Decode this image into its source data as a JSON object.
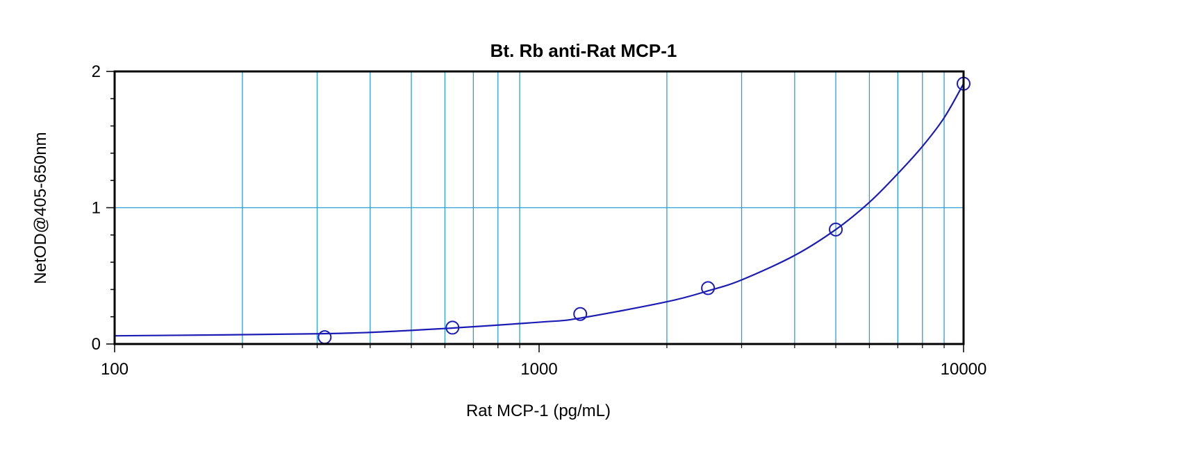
{
  "chart_data": {
    "type": "scatter",
    "title": "Bt. Rb anti-Rat MCP-1",
    "xlabel": "Rat MCP-1 (pg/mL)",
    "ylabel": "NetOD@405-650nm",
    "x_scale": "log",
    "xlim": [
      100,
      10000
    ],
    "ylim": [
      0,
      2
    ],
    "x_ticks": [
      {
        "value": 100,
        "label": "100"
      },
      {
        "value": 1000,
        "label": "1000"
      },
      {
        "value": 10000,
        "label": "10000"
      }
    ],
    "y_ticks": [
      {
        "value": 0,
        "label": "0"
      },
      {
        "value": 1,
        "label": "1"
      },
      {
        "value": 2,
        "label": "2"
      }
    ],
    "grid": true,
    "points": [
      {
        "x": 312.5,
        "y": 0.05
      },
      {
        "x": 625,
        "y": 0.12
      },
      {
        "x": 1250,
        "y": 0.22
      },
      {
        "x": 2500,
        "y": 0.41
      },
      {
        "x": 5000,
        "y": 0.84
      },
      {
        "x": 10000,
        "y": 1.91
      }
    ],
    "fit_curve": [
      {
        "x": 100,
        "y": 0.06
      },
      {
        "x": 300,
        "y": 0.075
      },
      {
        "x": 500,
        "y": 0.1
      },
      {
        "x": 1000,
        "y": 0.16
      },
      {
        "x": 1250,
        "y": 0.19
      },
      {
        "x": 2000,
        "y": 0.31
      },
      {
        "x": 2500,
        "y": 0.39
      },
      {
        "x": 3000,
        "y": 0.47
      },
      {
        "x": 4000,
        "y": 0.65
      },
      {
        "x": 5000,
        "y": 0.84
      },
      {
        "x": 6000,
        "y": 1.04
      },
      {
        "x": 7000,
        "y": 1.25
      },
      {
        "x": 8000,
        "y": 1.45
      },
      {
        "x": 9000,
        "y": 1.66
      },
      {
        "x": 10000,
        "y": 1.91
      }
    ],
    "colors": {
      "series": "#1c1cb4",
      "grid": "#2a9fd6",
      "frame": "#000000"
    }
  }
}
